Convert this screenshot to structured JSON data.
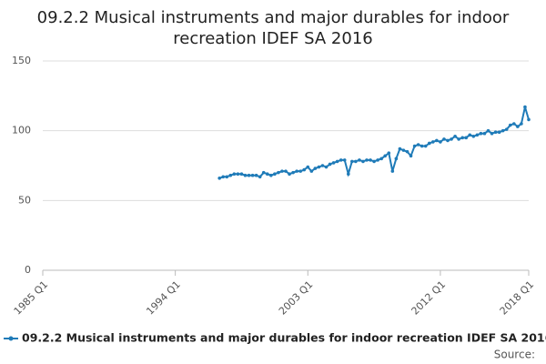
{
  "chart_data": {
    "type": "line",
    "title": "09.2.2 Musical instruments and major durables for indoor recreation IDEF SA 2016",
    "source": "Source:",
    "categories": [
      "1985 Q1",
      null,
      null,
      null,
      null,
      null,
      null,
      null,
      null,
      null,
      null,
      null,
      null,
      null,
      null,
      null,
      null,
      null,
      null,
      null,
      null,
      null,
      null,
      null,
      null,
      null,
      null,
      null,
      null,
      null,
      null,
      null,
      null,
      null,
      null,
      null,
      "1994 Q1",
      null,
      null,
      null,
      null,
      null,
      null,
      null,
      null,
      null,
      null,
      null,
      null,
      null,
      null,
      null,
      null,
      null,
      null,
      null,
      null,
      null,
      null,
      null,
      null,
      null,
      null,
      null,
      null,
      null,
      null,
      null,
      null,
      null,
      null,
      null,
      "2003 Q1",
      null,
      null,
      null,
      null,
      null,
      null,
      null,
      null,
      null,
      null,
      null,
      null,
      null,
      null,
      null,
      null,
      null,
      null,
      null,
      null,
      null,
      null,
      null,
      null,
      null,
      null,
      null,
      null,
      null,
      null,
      null,
      null,
      null,
      null,
      null,
      "2012 Q1",
      null,
      null,
      null,
      null,
      null,
      null,
      null,
      null,
      null,
      null,
      null,
      null,
      null,
      null,
      null,
      null,
      null,
      null,
      null,
      null,
      null,
      null,
      null,
      "2018 Q1"
    ],
    "series": [
      {
        "name": "09.2.2 Musical instruments and major durables for indoor recreation IDEF SA 2016",
        "color": "#1f7bb8",
        "values": [
          null,
          null,
          null,
          null,
          null,
          null,
          null,
          null,
          null,
          null,
          null,
          null,
          null,
          null,
          null,
          null,
          null,
          null,
          null,
          null,
          null,
          null,
          null,
          null,
          null,
          null,
          null,
          null,
          null,
          null,
          null,
          null,
          null,
          null,
          null,
          null,
          null,
          null,
          null,
          null,
          null,
          null,
          null,
          null,
          null,
          null,
          null,
          null,
          66,
          67,
          67,
          68,
          69,
          69,
          69,
          68,
          68,
          68,
          68,
          67,
          70,
          69,
          68,
          69,
          70,
          71,
          71,
          69,
          70,
          71,
          71,
          72,
          74,
          71,
          73,
          74,
          75,
          74,
          76,
          77,
          78,
          79,
          79,
          69,
          78,
          78,
          79,
          78,
          79,
          79,
          78,
          79,
          80,
          82,
          84,
          71,
          80,
          87,
          86,
          85,
          82,
          89,
          90,
          89,
          89,
          91,
          92,
          93,
          92,
          94,
          93,
          94,
          96,
          94,
          95,
          95,
          97,
          96,
          97,
          98,
          98,
          100,
          98,
          99,
          99,
          100,
          101,
          104,
          105,
          103,
          105,
          117,
          108
        ]
      }
    ],
    "ylim": [
      0,
      150
    ],
    "yticks": [
      0,
      50,
      100,
      150
    ],
    "grid": true
  }
}
